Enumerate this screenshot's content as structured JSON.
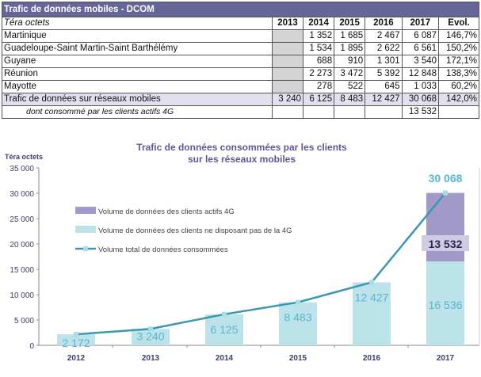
{
  "table": {
    "title": "Trafic de données mobiles - DCOM",
    "unit": "Téra octets",
    "columns": [
      "2013",
      "2014",
      "2015",
      "2016",
      "2017",
      "Evol."
    ],
    "rows": [
      {
        "label": "Martinique",
        "values": [
          "",
          "1 352",
          "1 685",
          "2 467",
          "6 087",
          "146,7%"
        ]
      },
      {
        "label": "Guadeloupe-Saint Martin-Saint Barthélémy",
        "values": [
          "",
          "1 534",
          "1 895",
          "2 622",
          "6 561",
          "150,2%"
        ]
      },
      {
        "label": "Guyane",
        "values": [
          "",
          "688",
          "910",
          "1 301",
          "3 540",
          "172,1%"
        ]
      },
      {
        "label": "Réunion",
        "values": [
          "",
          "2 273",
          "3 472",
          "5 392",
          "12 848",
          "138,3%"
        ]
      },
      {
        "label": "Mayotte",
        "values": [
          "",
          "278",
          "522",
          "645",
          "1 033",
          "60,2%"
        ]
      }
    ],
    "total": {
      "label": "Trafic de données sur réseaux mobiles",
      "values": [
        "3 240",
        "6 125",
        "8 483",
        "12 427",
        "30 068",
        "142,0%"
      ]
    },
    "sub": {
      "label": "dont consommé par les clients actifs 4G",
      "values": [
        "",
        "",
        "",
        "",
        "13 532",
        ""
      ]
    }
  },
  "chart_data": {
    "type": "bar",
    "title": "Trafic de données consommées par les clients",
    "title2": "sur les réseaux mobiles",
    "ylabel": "Téra octets",
    "ylim": [
      0,
      35000
    ],
    "yticks": [
      "0",
      "5 000",
      "10 000",
      "15 000",
      "20 000",
      "25 000",
      "30 000",
      "35 000"
    ],
    "categories": [
      "2012",
      "2013",
      "2014",
      "2015",
      "2016",
      "2017"
    ],
    "series": [
      {
        "name": "Volume de données des clients ne disposant pas de la 4G",
        "values": [
          2172,
          3240,
          6125,
          8483,
          12427,
          16536
        ],
        "labels": [
          "2 172",
          "3 240",
          "6 125",
          "8 483",
          "12 427",
          "16 536"
        ],
        "color": "#bde3ea"
      },
      {
        "name": "Volume de données des clients actifs 4G",
        "values": [
          0,
          0,
          0,
          0,
          0,
          13532
        ],
        "labels": [
          "",
          "",
          "",
          "",
          "",
          "13 532"
        ],
        "color": "#a19ac9"
      },
      {
        "name": "Volume total de données consommées",
        "type": "line",
        "values": [
          2172,
          3240,
          6125,
          8483,
          12427,
          30068
        ],
        "labels": [
          "",
          "",
          "",
          "",
          "",
          "30 068"
        ],
        "color": "#3a98b3"
      }
    ]
  }
}
